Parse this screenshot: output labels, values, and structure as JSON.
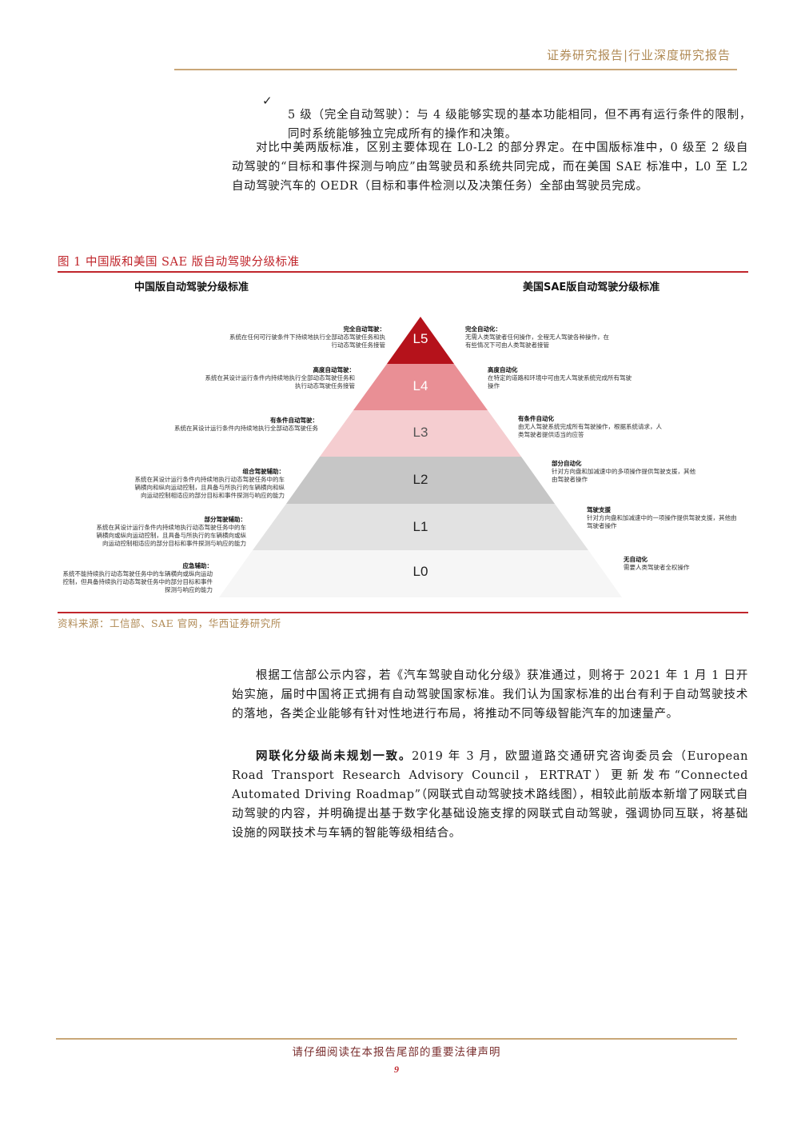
{
  "header": {
    "title": "证券研究报告|行业深度研究报告"
  },
  "bullet": {
    "icon": "check-icon",
    "text": "5 级（完全自动驾驶）：与 4 级能够实现的基本功能相同，但不再有运行条件的限制，同时系统能够独立完成所有的操作和决策。"
  },
  "para1": "对比中美两版标准，区别主要体现在 L0-L2 的部分界定。在中国版标准中，0 级至 2 级自动驾驶的“目标和事件探测与响应”由驾驶员和系统共同完成，而在美国 SAE 标准中，L0 至 L2 自动驾驶汽车的 OEDR（目标和事件检测以及决策任务）全部由驾驶员完成。",
  "figure": {
    "caption": "图 1   中国版和美国 SAE 版自动驾驶分级标准",
    "left_heading": "中国版自动驾驶分级标准",
    "right_heading": "美国SAE版自动驾驶分级标准",
    "levels": [
      {
        "label": "L5",
        "color": "#b5121b"
      },
      {
        "label": "L4",
        "color": "#e98f95"
      },
      {
        "label": "L3",
        "color": "#f5cdd0"
      },
      {
        "label": "L2",
        "color": "#c6c6c6"
      },
      {
        "label": "L1",
        "color": "#e2e2e2"
      },
      {
        "label": "L0",
        "color": "#f6f6f6"
      }
    ],
    "china_notes": [
      {
        "title": "完全自动驾驶：",
        "text": "系统在任何可行驶条件下持续地执行全部动态驾驶任务和执行动态驾驶任务接管"
      },
      {
        "title": "高度自动驾驶：",
        "text": "系统在其设计运行条件内持续地执行全部动态驾驶任务和执行动态驾驶任务接管"
      },
      {
        "title": "有条件自动驾驶：",
        "text": "系统在其设计运行条件内持续地执行全部动态驾驶任务"
      },
      {
        "title": "组合驾驶辅助：",
        "text": "系统在其设计运行条件内持续地执行动态驾驶任务中的车辆横向和纵向运动控制，且具备与所执行的车辆横向和纵向运动控制相适应的部分目标和事件探测与响应的能力"
      },
      {
        "title": "部分驾驶辅助：",
        "text": "系统在其设计运行条件内持续地执行动态驾驶任务中的车辆横向或纵向运动控制，且具备与所执行的车辆横向或纵向运动控制相适应的部分目标和事件探测与响应的能力"
      },
      {
        "title": "应急辅助：",
        "text": "系统不能持续执行动态驾驶任务中的车辆横向或纵向运动控制，但具备持续执行动态驾驶任务中的部分目标和事件探测与响应的能力"
      }
    ],
    "sae_notes": [
      {
        "title": "完全自动化：",
        "text": "无需人类驾驶者任何操作，全程无人驾驶各种操作，在有些情况下可由人类驾驶者接管"
      },
      {
        "title": "高度自动化",
        "text": "在特定的道路和环境中可由无人驾驶系统完成所有驾驶操作"
      },
      {
        "title": "有条件自动化",
        "text": "由无人驾驶系统完成所有驾驶操作，根据系统请求，人类驾驶者提供适当的应答"
      },
      {
        "title": "部分自动化",
        "text": "针对方向盘和加减速中的多项操作提供驾驶支援，其他由驾驶者操作"
      },
      {
        "title": "驾驶支援",
        "text": "针对方向盘和加减速中的一项操作提供驾驶支援，其他由驾驶者操作"
      },
      {
        "title": "无自动化",
        "text": "需要人类驾驶者全权操作"
      }
    ],
    "source": "资料来源：工信部、SAE 官网，华西证券研究所"
  },
  "para2": "根据工信部公示内容，若《汽车驾驶自动化分级》获准通过，则将于 2021 年 1 月 1 日开始实施，届时中国将正式拥有自动驾驶国家标准。我们认为国家标准的出台有利于自动驾驶技术的落地，各类企业能够有针对性地进行布局，将推动不同等级智能汽车的加速量产。",
  "para3": {
    "lead": "网联化分级尚未规划一致。",
    "text": "2019 年 3 月，欧盟道路交通研究咨询委员会（European Road Transport Research Advisory Council，ERTRAT）更新发布“Connected Automated Driving Roadmap”（网联式自动驾驶技术路线图），相较此前版本新增了网联式自动驾驶的内容，并明确提出基于数字化基础设施支撑的网联式自动驾驶，强调协同互联，将基础设施的网联技术与车辆的智能等级相结合。"
  },
  "footer": {
    "text": "请仔细阅读在本报告尾部的重要法律声明",
    "page": "9"
  }
}
